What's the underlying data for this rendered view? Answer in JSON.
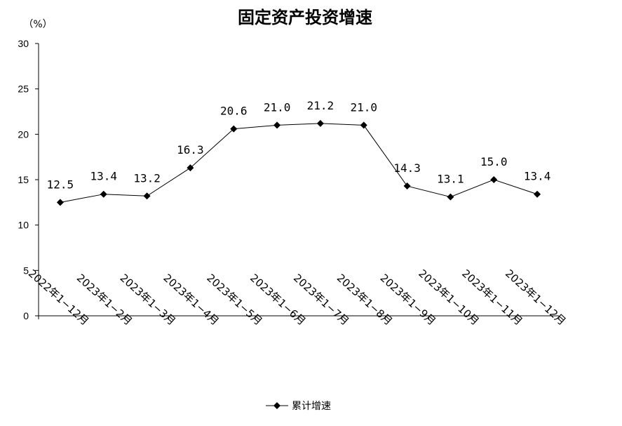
{
  "chart_data": {
    "type": "line",
    "title": "固定资产投资增速",
    "unit_label": "（%）",
    "categories": [
      "2022年1−12月",
      "2023年1−2月",
      "2023年1−3月",
      "2023年1−4月",
      "2023年1−5月",
      "2023年1−6月",
      "2023年1−7月",
      "2023年1−8月",
      "2023年1−9月",
      "2023年1−10月",
      "2023年1−11月",
      "2023年1−12月"
    ],
    "series": [
      {
        "name": "累计增速",
        "values": [
          12.5,
          13.4,
          13.2,
          16.3,
          20.6,
          21.0,
          21.2,
          21.0,
          14.3,
          13.1,
          15.0,
          13.4
        ],
        "labels": [
          "12.5",
          "13.4",
          "13.2",
          "16.3",
          "20.6",
          "21.0",
          "21.2",
          "21.0",
          "14.3",
          "13.1",
          "15.0",
          "13.4"
        ],
        "color": "#000000",
        "marker": "diamond"
      }
    ],
    "ylim": [
      0,
      30
    ],
    "yticks": [
      "0",
      "5",
      "10",
      "15",
      "20",
      "25",
      "30"
    ],
    "grid": false,
    "legend_position": "bottom-center"
  }
}
